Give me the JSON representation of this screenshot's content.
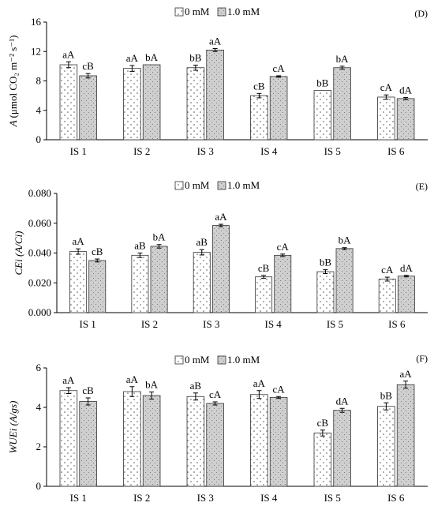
{
  "chart_data": [
    {
      "type": "bar",
      "panel_label": "(D)",
      "ylabel_main": "A",
      "ylabel_unit": "(μmol CO₂ m⁻² s⁻¹)",
      "categories": [
        "IS 1",
        "IS 2",
        "IS 3",
        "IS 4",
        "IS 5",
        "IS 6"
      ],
      "ylim": [
        0,
        16
      ],
      "yticks": [
        0,
        4,
        8,
        12,
        16
      ],
      "tick_labels": [
        "0",
        "4",
        "8",
        "12",
        "16"
      ],
      "legend": "top-center",
      "series": [
        {
          "name": "0 mM",
          "values": [
            10.2,
            9.7,
            9.8,
            6.0,
            6.7,
            5.8
          ],
          "errors": [
            0.4,
            0.4,
            0.35,
            0.3,
            0.0,
            0.3
          ],
          "letters": [
            "aA",
            "aA",
            "bB",
            "cB",
            "bB",
            "cA"
          ]
        },
        {
          "name": "1.0 mM",
          "values": [
            8.7,
            10.2,
            12.2,
            8.6,
            9.8,
            5.6
          ],
          "errors": [
            0.3,
            0.0,
            0.2,
            0.1,
            0.2,
            0.15
          ],
          "letters": [
            "cB",
            "bA",
            "aA",
            "cA",
            "bA",
            "dA"
          ]
        }
      ]
    },
    {
      "type": "bar",
      "panel_label": "(E)",
      "ylabel_main": "CEi",
      "ylabel_unit": "(A/Ci)",
      "categories": [
        "IS 1",
        "IS 2",
        "IS 3",
        "IS 4",
        "IS 5",
        "IS 6"
      ],
      "ylim": [
        0,
        0.08
      ],
      "yticks": [
        0,
        0.02,
        0.04,
        0.06,
        0.08
      ],
      "tick_labels": [
        "0.000",
        "0.020",
        "0.040",
        "0.060",
        "0.080"
      ],
      "legend": "top-center",
      "series": [
        {
          "name": "0 mM",
          "values": [
            0.041,
            0.0385,
            0.0405,
            0.024,
            0.0275,
            0.0225
          ],
          "errors": [
            0.0018,
            0.0015,
            0.0018,
            0.001,
            0.0013,
            0.0013
          ],
          "letters": [
            "aA",
            "aB",
            "aB",
            "cB",
            "bB",
            "cA"
          ]
        },
        {
          "name": "1.0 mM",
          "values": [
            0.035,
            0.0445,
            0.0585,
            0.0385,
            0.043,
            0.0245
          ],
          "errors": [
            0.001,
            0.0012,
            0.0008,
            0.0008,
            0.0006,
            0.0005
          ],
          "letters": [
            "cB",
            "bA",
            "aA",
            "cA",
            "bA",
            "dA"
          ]
        }
      ]
    },
    {
      "type": "bar",
      "panel_label": "(F)",
      "ylabel_main": "WUEi",
      "ylabel_unit": "(A/gs)",
      "categories": [
        "IS 1",
        "IS 2",
        "IS 3",
        "IS 4",
        "IS 5",
        "IS 6"
      ],
      "ylim": [
        0,
        6
      ],
      "yticks": [
        0,
        2,
        4,
        6
      ],
      "tick_labels": [
        "0",
        "2",
        "4",
        "6"
      ],
      "legend": "top-center",
      "series": [
        {
          "name": "0 mM",
          "values": [
            4.85,
            4.8,
            4.55,
            4.65,
            2.7,
            4.05
          ],
          "errors": [
            0.15,
            0.25,
            0.18,
            0.2,
            0.15,
            0.18
          ],
          "letters": [
            "aA",
            "aA",
            "aB",
            "aA",
            "cB",
            "bB"
          ]
        },
        {
          "name": "1.0 mM",
          "values": [
            4.3,
            4.6,
            4.2,
            4.5,
            3.85,
            5.15
          ],
          "errors": [
            0.18,
            0.18,
            0.08,
            0.05,
            0.1,
            0.18
          ],
          "letters": [
            "cB",
            "bA",
            "cA",
            "cA",
            "dA",
            "aA"
          ]
        }
      ]
    }
  ]
}
